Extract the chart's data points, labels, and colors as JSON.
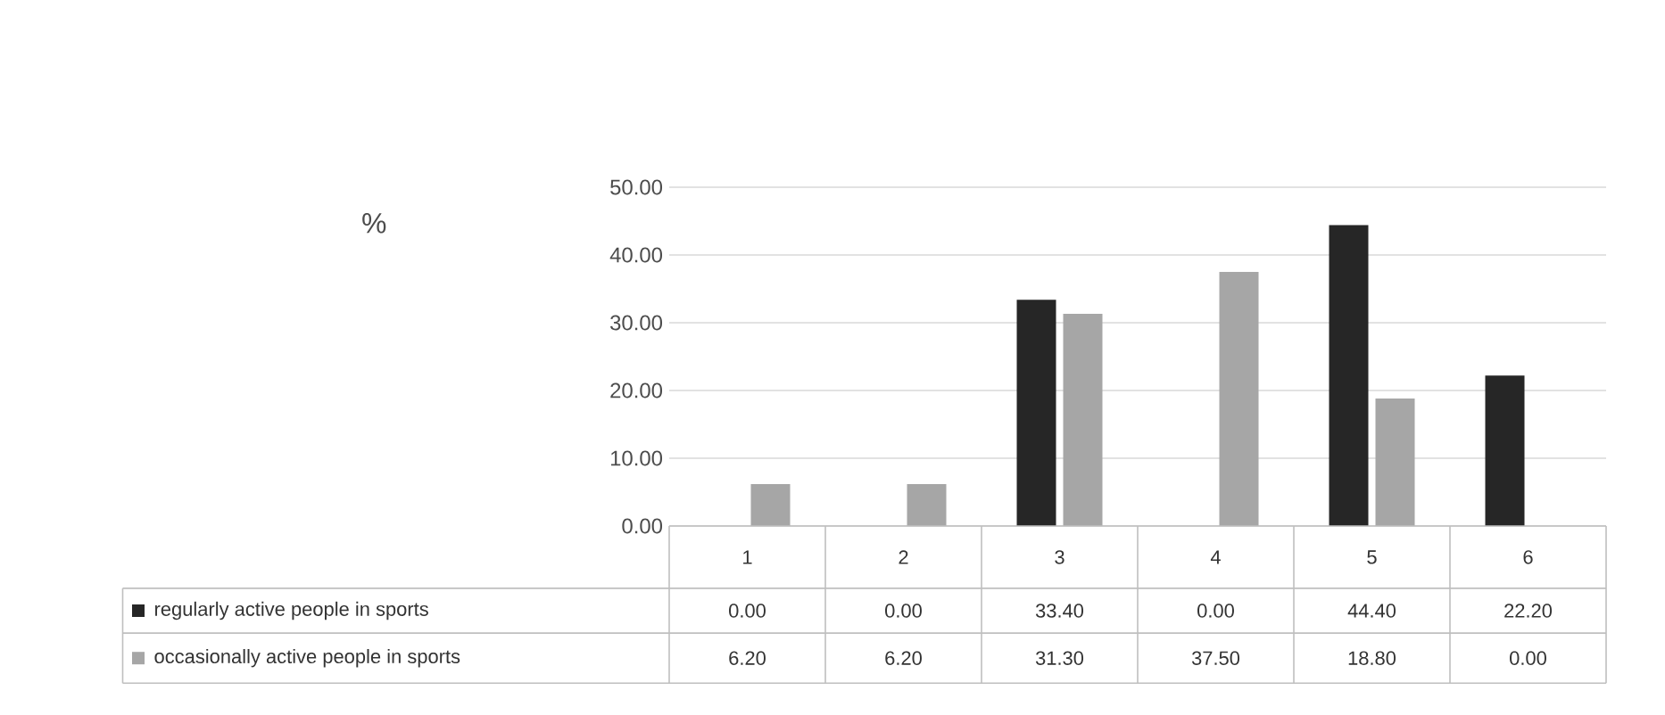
{
  "chart_data": {
    "type": "bar",
    "annotations": [
      "%"
    ],
    "categories": [
      "1",
      "2",
      "3",
      "4",
      "5",
      "6"
    ],
    "series": [
      {
        "name": "regularly active people in sports",
        "color": "#262626",
        "values": [
          0.0,
          0.0,
          33.4,
          0.0,
          44.4,
          22.2
        ],
        "value_labels": [
          "0.00",
          "0.00",
          "33.40",
          "0.00",
          "44.40",
          "22.20"
        ]
      },
      {
        "name": "occasionally active people in sports",
        "color": "#a6a6a6",
        "values": [
          6.2,
          6.2,
          31.3,
          37.5,
          18.8,
          0.0
        ],
        "value_labels": [
          "6.20",
          "6.20",
          "31.30",
          "37.50",
          "18.80",
          "0.00"
        ]
      }
    ],
    "ylim": [
      0,
      50
    ],
    "yticks": [
      {
        "value": 0,
        "label": "0.00"
      },
      {
        "value": 10,
        "label": "10.00"
      },
      {
        "value": 20,
        "label": "20.00"
      },
      {
        "value": 30,
        "label": "30.00"
      },
      {
        "value": 40,
        "label": "40.00"
      },
      {
        "value": 50,
        "label": "50.00"
      }
    ],
    "grid": "y",
    "legend": "bottom"
  }
}
